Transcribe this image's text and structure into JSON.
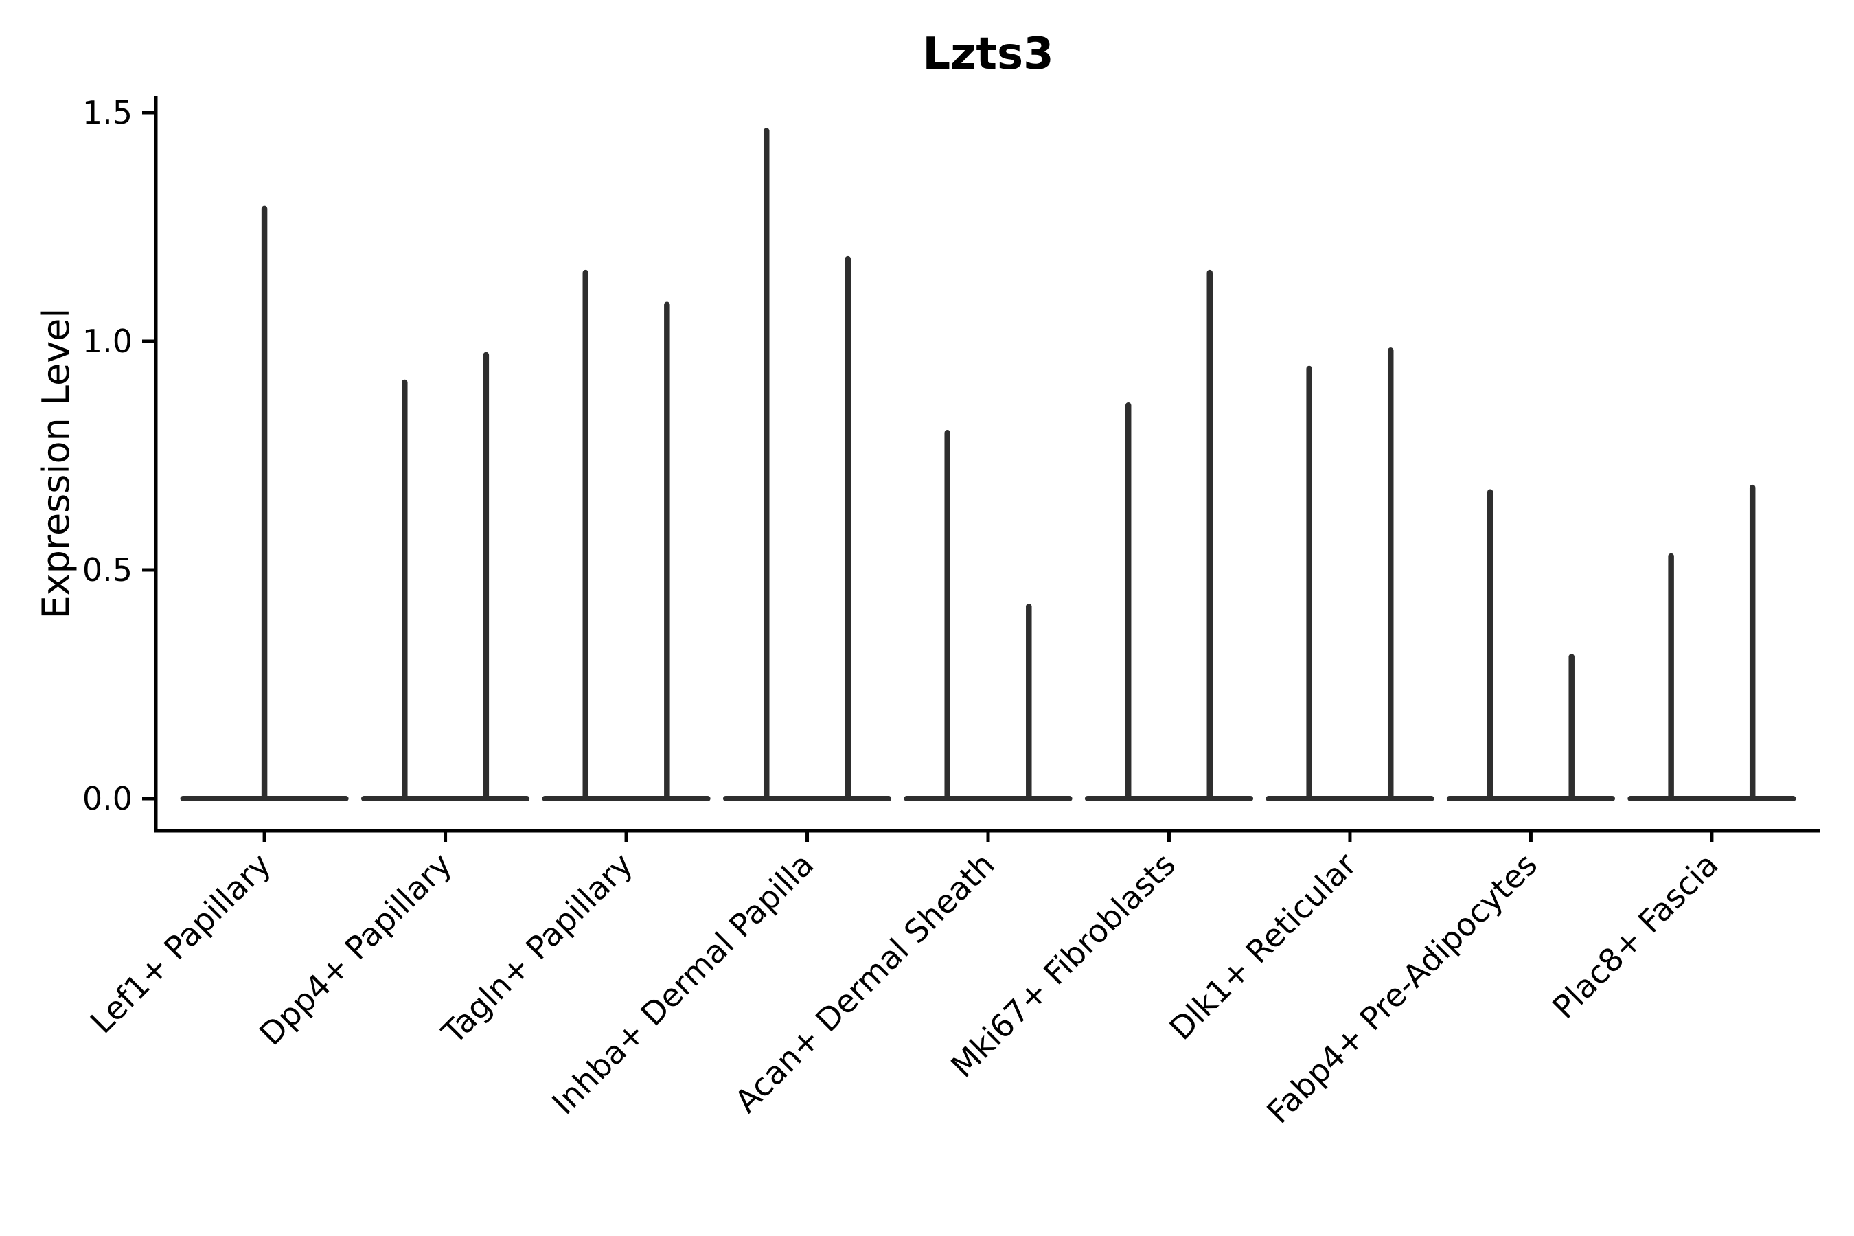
{
  "figure": {
    "background_color": "#ffffff",
    "text_color": "#000000"
  },
  "chart_data": {
    "type": "violin",
    "title": "Lzts3",
    "xlabel": "",
    "ylabel": "Expression Level",
    "ylim": [
      -0.07,
      1.54
    ],
    "yticks": [
      0.0,
      0.5,
      1.0,
      1.5
    ],
    "ytick_labels": [
      "0.0",
      "0.5",
      "1.0",
      "1.5"
    ],
    "grid": false,
    "legend": "none",
    "line_color": "#2e2e2e",
    "axis_color": "#000000",
    "violin_slot_width": 0.9,
    "categories": [
      "Lef1+ Papillary",
      "Dpp4+ Papillary",
      "Tagln+ Papillary",
      "Inhba+ Dermal Papilla",
      "Acan+ Dermal Sheath",
      "Mki67+ Fibroblasts",
      "Dlk1+ Reticular",
      "Fabp4+ Pre-Adipocytes",
      "Plac8+ Fascia"
    ],
    "series": [
      {
        "name": "Lef1+ Papillary",
        "spike_maxima": [
          1.29
        ]
      },
      {
        "name": "Dpp4+ Papillary",
        "spike_maxima": [
          0.91,
          0.97
        ]
      },
      {
        "name": "Tagln+ Papillary",
        "spike_maxima": [
          1.15,
          1.08
        ]
      },
      {
        "name": "Inhba+ Dermal Papilla",
        "spike_maxima": [
          1.46,
          1.18
        ]
      },
      {
        "name": "Acan+ Dermal Sheath",
        "spike_maxima": [
          0.8,
          0.42
        ]
      },
      {
        "name": "Mki67+ Fibroblasts",
        "spike_maxima": [
          0.86,
          1.15
        ]
      },
      {
        "name": "Dlk1+ Reticular",
        "spike_maxima": [
          0.94,
          0.98
        ]
      },
      {
        "name": "Fabp4+ Pre-Adipocytes",
        "spike_maxima": [
          0.67,
          0.31
        ]
      },
      {
        "name": "Plac8+ Fascia",
        "spike_maxima": [
          0.53,
          0.68
        ]
      }
    ],
    "baseline_value": 0.0,
    "annotation": "each violin is collapsed: wide flat base at 0 with thin density spike(s) up to the max expression"
  }
}
